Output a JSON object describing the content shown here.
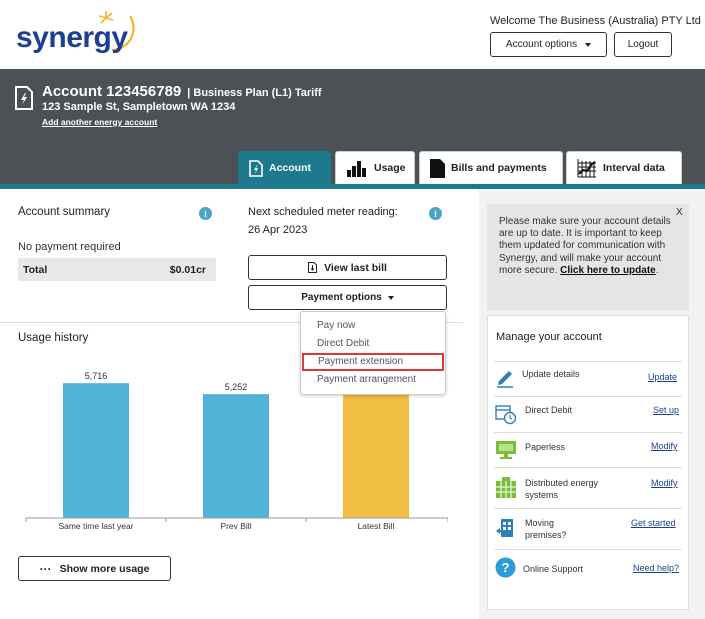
{
  "header": {
    "logo_text": "synergy",
    "welcome": "Welcome The Business (Australia) PTY Ltd",
    "account_options_label": "Account options",
    "logout_label": "Logout"
  },
  "account": {
    "title": "Account 123456789",
    "plan": "| Business Plan (L1) Tariff",
    "address": "123 Sample St, Sampletown WA 1234",
    "add_link": "Add another energy account"
  },
  "tabs": [
    {
      "label": "Account",
      "active": true
    },
    {
      "label": "Usage",
      "active": false
    },
    {
      "label": "Bills and payments",
      "active": false
    },
    {
      "label": "Interval data",
      "active": false
    }
  ],
  "summary": {
    "title": "Account summary",
    "status": "No payment required",
    "total_label": "Total",
    "total_value": "$0.01cr"
  },
  "meter": {
    "label": "Next scheduled meter reading:",
    "date": "26 Apr 2023"
  },
  "buttons": {
    "view_last_bill": "View last bill",
    "payment_options": "Payment options",
    "show_more_usage": "Show more usage"
  },
  "payment_menu": {
    "items": [
      "Pay now",
      "Direct Debit",
      "Payment extension",
      "Payment arrangement"
    ],
    "highlighted": "Payment extension"
  },
  "usage": {
    "title": "Usage history"
  },
  "chart_data": {
    "type": "bar",
    "categories": [
      "Same time last year",
      "Prev Bill",
      "Latest Bill"
    ],
    "values": [
      5716,
      5252,
      null
    ],
    "value_labels": [
      "5,716",
      "5,252",
      ""
    ],
    "colors": [
      "#4fb3d7",
      "#4fb3d7",
      "#f0be41"
    ],
    "ylim": [
      0,
      6700
    ],
    "grid": false
  },
  "notice": {
    "text": "Please make sure your account details are up to date. It is important to keep them updated for communication with Synergy, and will make your account more secure.",
    "link": "Click here to update",
    "after_link": ".",
    "close": "X"
  },
  "manage": {
    "title": "Manage your account",
    "items": [
      {
        "label": "Update details",
        "link": "Update",
        "icon": "pencil-icon"
      },
      {
        "label": "Direct Debit",
        "link": "Set up",
        "icon": "calendar-clock-icon"
      },
      {
        "label": "Paperless",
        "link": "Modify",
        "icon": "monitor-icon"
      },
      {
        "label": "Distributed energy systems",
        "link": "Modify",
        "icon": "solar-panel-icon"
      },
      {
        "label": "Moving premises?",
        "link": "Get started",
        "icon": "moving-building-icon"
      },
      {
        "label": "Online Support",
        "link": "Need help?",
        "icon": "help-icon"
      }
    ]
  },
  "colors": {
    "brand_blue": "#1c3f95",
    "brand_teal": "#1d7a8c",
    "band": "#4c5156",
    "bar_blue": "#4fb3d7",
    "bar_yellow": "#f0be41",
    "highlight": "#d93a3a"
  }
}
